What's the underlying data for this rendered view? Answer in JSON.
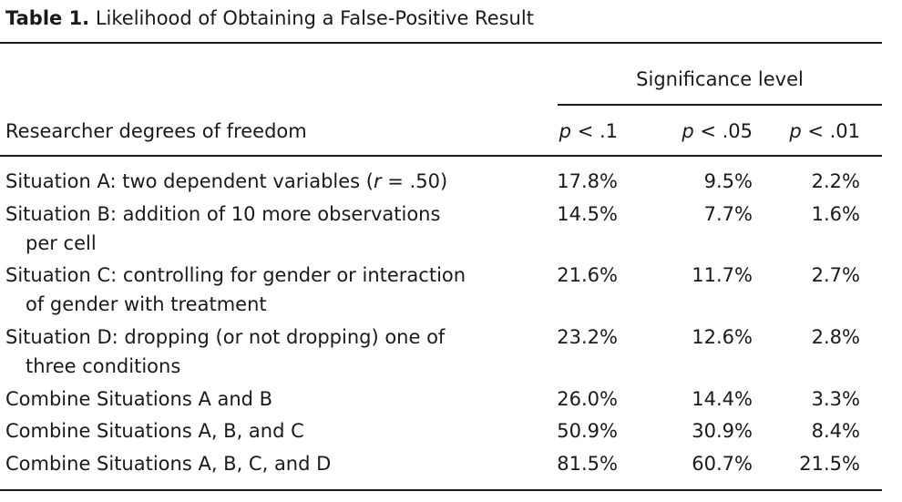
{
  "table": {
    "label": "Table 1.",
    "title": "Likelihood of Obtaining a False-Positive Result",
    "header": {
      "group_label": "Significance level",
      "row_label_header": "Researcher degrees of freedom",
      "columns": [
        {
          "p": "p",
          "rest": " < .1"
        },
        {
          "p": "p",
          "rest": " < .05"
        },
        {
          "p": "p",
          "rest": " < .01"
        }
      ]
    },
    "rows": [
      {
        "line1a": "Situation A: two dependent variables (",
        "italic": "r",
        "line1b": " = .50)",
        "line2": "",
        "values": [
          "17.8%",
          "9.5%",
          "2.2%"
        ]
      },
      {
        "line1a": "Situation B: addition of 10 more observations",
        "italic": "",
        "line1b": "",
        "line2": "per cell",
        "values": [
          "14.5%",
          "7.7%",
          "1.6%"
        ]
      },
      {
        "line1a": "Situation C: controlling for gender or interaction",
        "italic": "",
        "line1b": "",
        "line2": "of gender with treatment",
        "values": [
          "21.6%",
          "11.7%",
          "2.7%"
        ]
      },
      {
        "line1a": "Situation D: dropping (or not dropping) one of",
        "italic": "",
        "line1b": "",
        "line2": "three conditions",
        "values": [
          "23.2%",
          "12.6%",
          "2.8%"
        ]
      },
      {
        "line1a": "Combine Situations A and B",
        "italic": "",
        "line1b": "",
        "line2": "",
        "values": [
          "26.0%",
          "14.4%",
          "3.3%"
        ]
      },
      {
        "line1a": "Combine Situations A, B, and C",
        "italic": "",
        "line1b": "",
        "line2": "",
        "values": [
          "50.9%",
          "30.9%",
          "8.4%"
        ]
      },
      {
        "line1a": "Combine Situations A, B, C, and D",
        "italic": "",
        "line1b": "",
        "line2": "",
        "values": [
          "81.5%",
          "60.7%",
          "21.5%"
        ]
      }
    ]
  }
}
